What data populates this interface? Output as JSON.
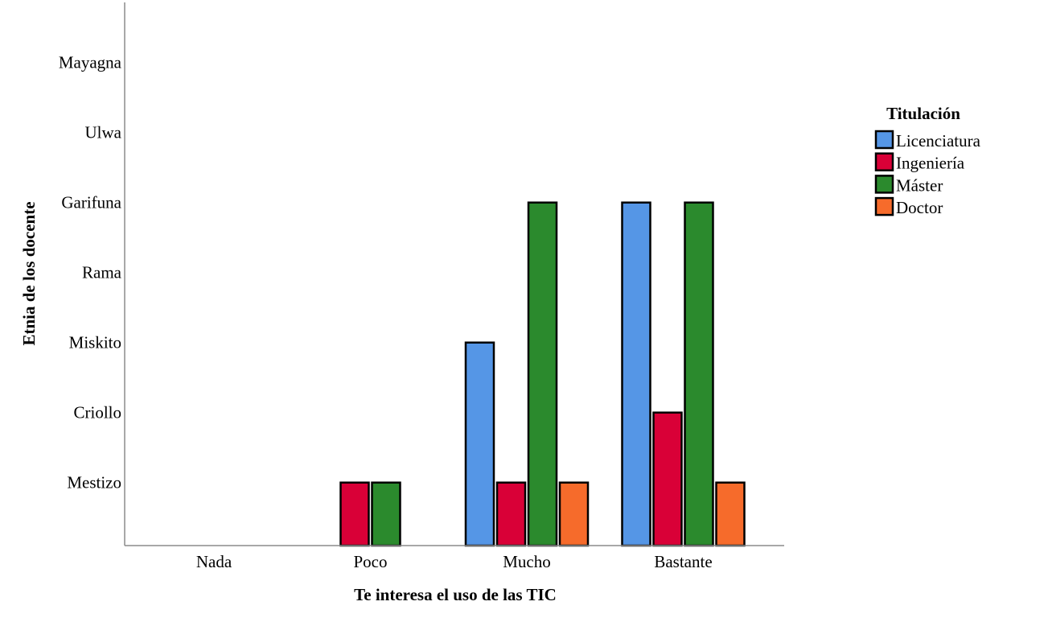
{
  "chart_data": {
    "type": "bar",
    "title": "",
    "xlabel": "Te interesa el uso de las TIC",
    "ylabel": "Etnia de los docente",
    "categories": [
      "Nada",
      "Poco",
      "Mucho",
      "Bastante"
    ],
    "y_categories": [
      "Mestizo",
      "Criollo",
      "Miskito",
      "Rama",
      "Garifuna",
      "Ulwa",
      "Mayagna"
    ],
    "ylim": [
      0,
      7.5
    ],
    "grid": false,
    "legend": {
      "title": "Titulación",
      "position": "right"
    },
    "series": [
      {
        "name": "Licenciatura",
        "color": "#5596e6",
        "values": [
          0,
          0,
          3,
          5
        ]
      },
      {
        "name": "Ingeniería",
        "color": "#d90037",
        "values": [
          0,
          1,
          1,
          2
        ]
      },
      {
        "name": "Máster",
        "color": "#2b8a2d",
        "values": [
          0,
          1,
          5,
          5
        ]
      },
      {
        "name": "Doctor",
        "color": "#f66b2b",
        "values": [
          0,
          0,
          1,
          1
        ]
      }
    ]
  }
}
